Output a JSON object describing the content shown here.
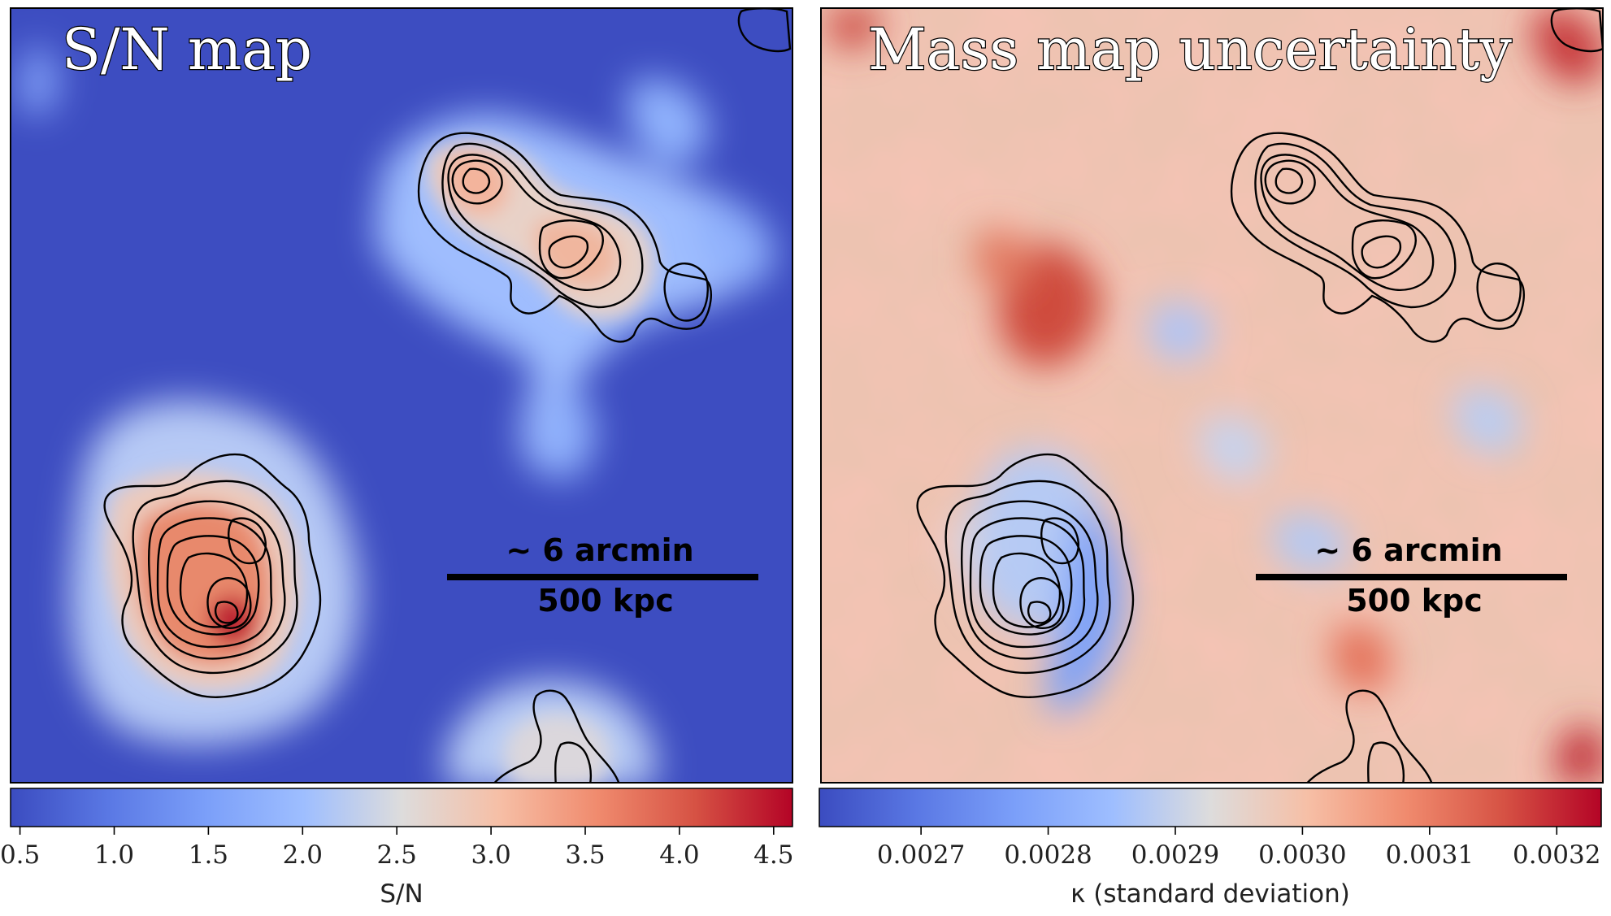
{
  "panels": [
    {
      "title": "S/N map",
      "scalebar": {
        "top_label": "~ 6 arcmin",
        "bottom_label": "500 kpc"
      },
      "colorbar": {
        "label": "S/N",
        "ticks": [
          "0.5",
          "1.0",
          "1.5",
          "2.0",
          "2.5",
          "3.0",
          "3.5",
          "4.0",
          "4.5"
        ],
        "tick_values": [
          0.5,
          1.0,
          1.5,
          2.0,
          2.5,
          3.0,
          3.5,
          4.0,
          4.5
        ],
        "range": [
          0.45,
          4.6
        ],
        "colormap": "coolwarm"
      }
    },
    {
      "title": "Mass map uncertainty",
      "scalebar": {
        "top_label": "~ 6 arcmin",
        "bottom_label": "500 kpc"
      },
      "colorbar": {
        "label": "κ (standard deviation)",
        "ticks": [
          "0.0027",
          "0.0028",
          "0.0029",
          "0.0030",
          "0.0031",
          "0.0032"
        ],
        "tick_values": [
          0.0027,
          0.0028,
          0.0029,
          0.003,
          0.0031,
          0.0032
        ],
        "range": [
          0.00262,
          0.003235
        ],
        "colormap": "coolwarm"
      }
    }
  ],
  "chart_data": [
    {
      "type": "heatmap",
      "title": "S/N map",
      "colorbar_label": "S/N",
      "colorbar_range": [
        0.45,
        4.6
      ],
      "colormap": "coolwarm",
      "contours": "black",
      "features": [
        {
          "name": "lower-left peak",
          "peak_value": 4.5
        },
        {
          "name": "upper-right double peak",
          "peak_value": 3.4
        },
        {
          "name": "bottom-middle clump",
          "peak_value": 2.3
        }
      ]
    },
    {
      "type": "heatmap",
      "title": "Mass map uncertainty",
      "colorbar_label": "κ (standard deviation)",
      "colorbar_range": [
        0.00262,
        0.003235
      ],
      "colormap": "coolwarm",
      "contours": "black"
    }
  ],
  "colors": {
    "low": "#3b4cc0",
    "mid": "#dddddd",
    "high": "#b40426",
    "contour": "#000000"
  }
}
